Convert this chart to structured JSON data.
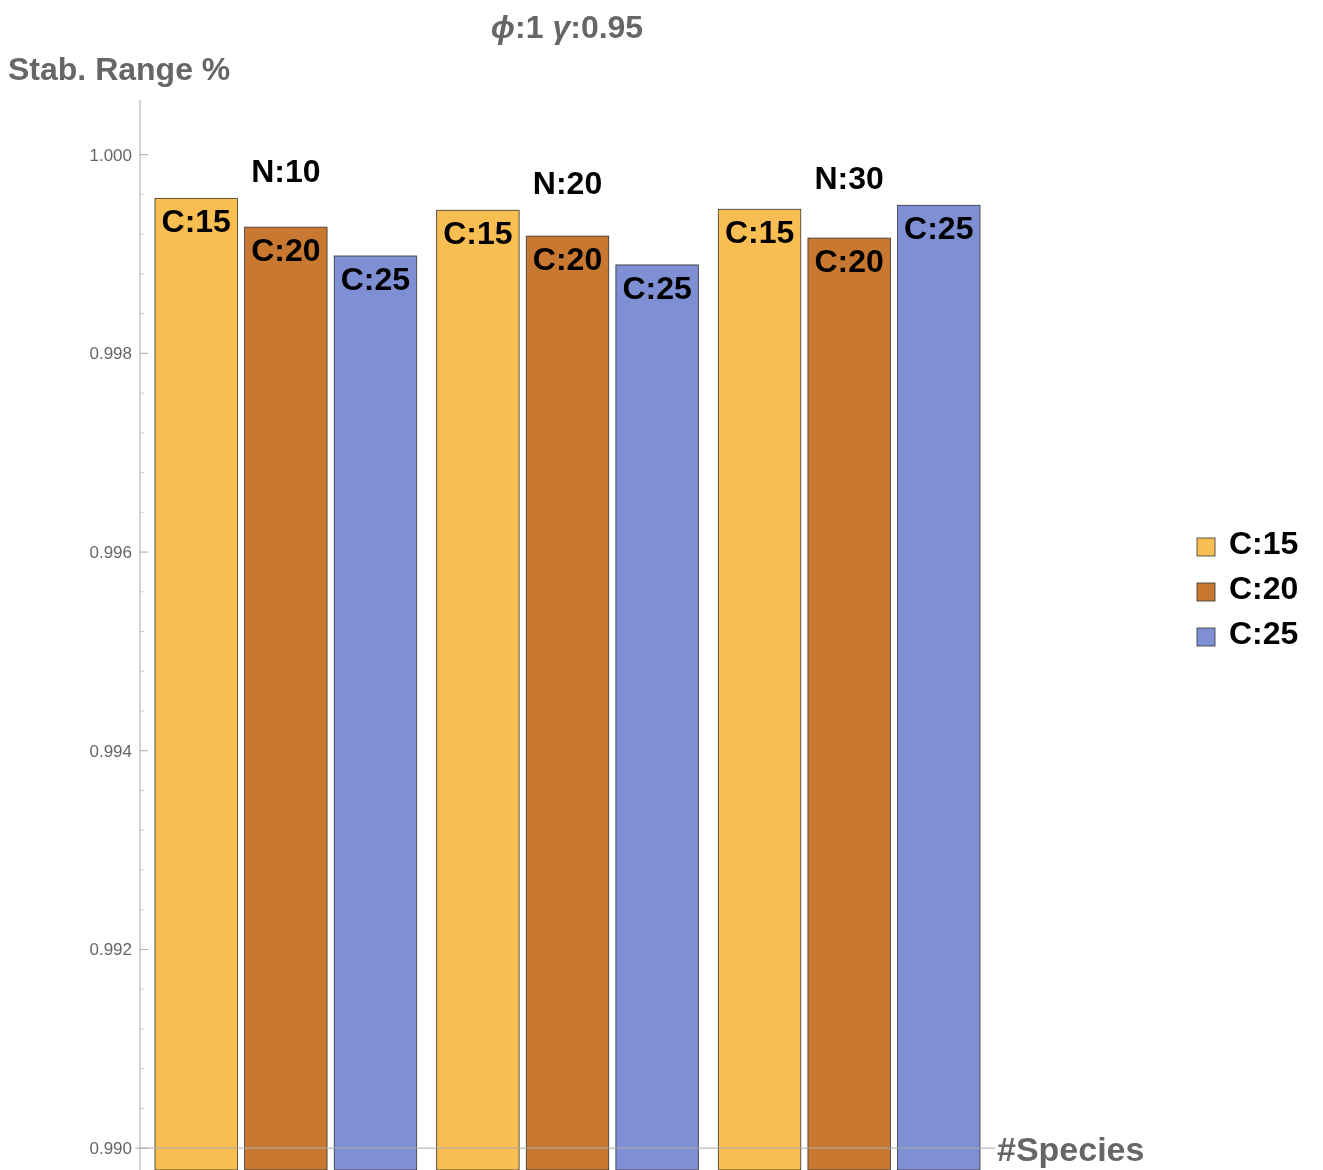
{
  "chart_data": {
    "type": "bar",
    "title": "ϕ:1 γ:0.95",
    "xlabel": "#Species",
    "ylabel": "Stab. Range %",
    "categories": [
      "N:10",
      "N:20",
      "N:30"
    ],
    "series": [
      {
        "name": "C:15",
        "color": "#f9be52",
        "values": [
          0.99956,
          0.99944,
          0.99945
        ]
      },
      {
        "name": "C:20",
        "color": "#c87831",
        "values": [
          0.99927,
          0.99918,
          0.99916
        ]
      },
      {
        "name": "C:25",
        "color": "#7f8fd4",
        "values": [
          0.99898,
          0.99889,
          0.99949
        ]
      }
    ],
    "ylim": [
      0.98978,
      1.00055
    ],
    "yticks": [
      {
        "value": 0.99,
        "label": "0.990"
      },
      0.992,
      0.994,
      0.996,
      0.998,
      {
        "value": 1,
        "label": "1.000"
      }
    ],
    "legend": "right"
  }
}
